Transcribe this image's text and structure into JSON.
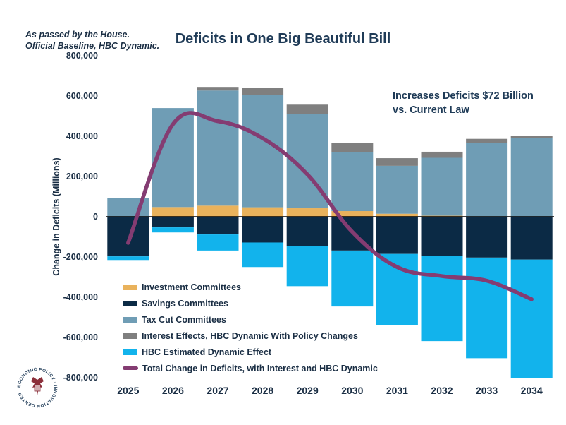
{
  "header": {
    "subtitle_line1": "As passed by the House.",
    "subtitle_line2": "Official Baseline, HBC Dynamic.",
    "title": "Deficits in One Big Beautiful Bill"
  },
  "callout": {
    "line1": "Increases Deficits $72 Billion",
    "line2": "vs. Current Law"
  },
  "logo": {
    "text": "ECONOMIC POLICY · INNOVATION CENTER ·",
    "icon": "eagle-seal-icon"
  },
  "colors": {
    "investment": "#e9b25c",
    "savings": "#0b2a45",
    "tax_cut": "#6f9db5",
    "interest": "#7f7f7f",
    "dynamic": "#12b3ec",
    "total_line": "#843c72",
    "zero_line": "#000000"
  },
  "chart_data": {
    "type": "bar",
    "stacked": true,
    "title": "Deficits in One Big Beautiful Bill",
    "ylabel": "Change in Deficits (Millions)",
    "xlabel": "",
    "ylim": [
      -800000,
      800000
    ],
    "yticks": [
      -800000,
      -600000,
      -400000,
      -200000,
      0,
      200000,
      400000,
      600000,
      800000
    ],
    "ytick_labels": [
      "-800,000",
      "-600,000",
      "-400,000",
      "-200,000",
      "0",
      "200,000",
      "400,000",
      "600,000",
      "800,000"
    ],
    "categories": [
      "2025",
      "2026",
      "2027",
      "2028",
      "2029",
      "2030",
      "2031",
      "2032",
      "2033",
      "2034"
    ],
    "legend_position": "bottom-left",
    "grid": false,
    "series": [
      {
        "name": "Investment Committees",
        "key": "investment",
        "kind": "bar",
        "values": [
          0,
          48000,
          55000,
          47000,
          42000,
          28000,
          15000,
          5000,
          2000,
          -3000
        ]
      },
      {
        "name": "Savings Committees",
        "key": "savings",
        "kind": "bar",
        "values": [
          -197000,
          -53000,
          -88000,
          -128000,
          -145000,
          -168000,
          -185000,
          -193000,
          -203000,
          -210000
        ]
      },
      {
        "name": "Tax Cut Committees",
        "key": "tax_cut",
        "kind": "bar",
        "values": [
          92000,
          492000,
          572000,
          558000,
          470000,
          292000,
          238000,
          288000,
          363000,
          392000
        ]
      },
      {
        "name": "Interest Effects, HBC Dynamic With Policy Changes",
        "key": "interest",
        "kind": "bar",
        "values": [
          0,
          0,
          18000,
          35000,
          45000,
          45000,
          38000,
          30000,
          22000,
          10000
        ]
      },
      {
        "name": "HBC Estimated Dynamic Effect",
        "key": "dynamic",
        "kind": "bar",
        "values": [
          -18000,
          -25000,
          -80000,
          -122000,
          -200000,
          -278000,
          -355000,
          -425000,
          -500000,
          -590000
        ]
      },
      {
        "name": "Total Change in Deficits, with Interest and HBC Dynamic",
        "key": "total_line",
        "kind": "line",
        "values": [
          -130000,
          460000,
          475000,
          390000,
          210000,
          -75000,
          -250000,
          -295000,
          -318000,
          -410000
        ]
      }
    ]
  }
}
